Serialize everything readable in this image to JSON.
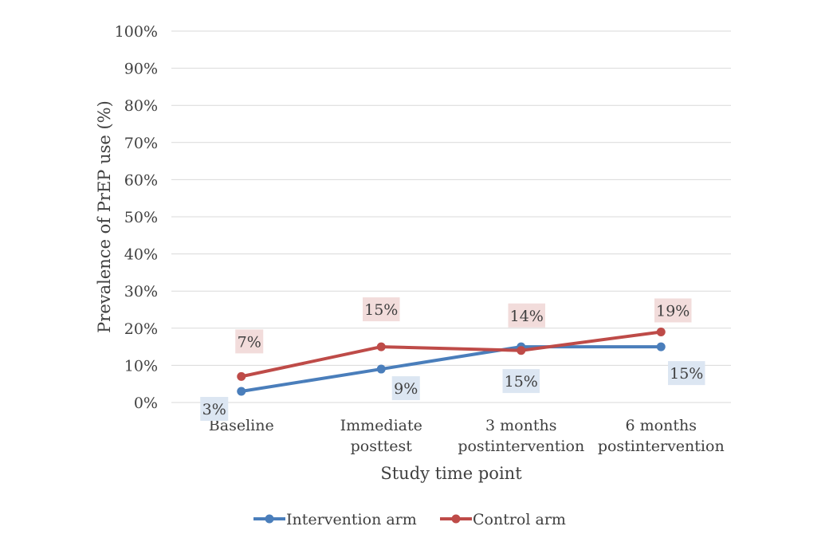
{
  "chart_data": {
    "type": "line",
    "ylabel": "Prevalence of PrEP use (%)",
    "xlabel": "Study time point",
    "ylim": [
      0,
      100
    ],
    "y_ticks": [
      "0%",
      "10%",
      "20%",
      "30%",
      "40%",
      "50%",
      "60%",
      "70%",
      "80%",
      "90%",
      "100%"
    ],
    "categories": [
      [
        "Baseline"
      ],
      [
        "Immediate",
        "posttest"
      ],
      [
        "3 months",
        "postintervention"
      ],
      [
        "6 months",
        "postintervention"
      ]
    ],
    "series": [
      {
        "name": "Intervention arm",
        "color": "#4a7ebb",
        "label_bg": "#dce6f2",
        "values": [
          3,
          9,
          15,
          15
        ],
        "labels": [
          "3%",
          "9%",
          "15%",
          "15%"
        ]
      },
      {
        "name": "Control arm",
        "color": "#be4b48",
        "label_bg": "#f2dcdb",
        "values": [
          7,
          15,
          14,
          19
        ],
        "labels": [
          "7%",
          "15%",
          "14%",
          "19%"
        ]
      }
    ],
    "grid": true,
    "legend_position": "bottom"
  }
}
